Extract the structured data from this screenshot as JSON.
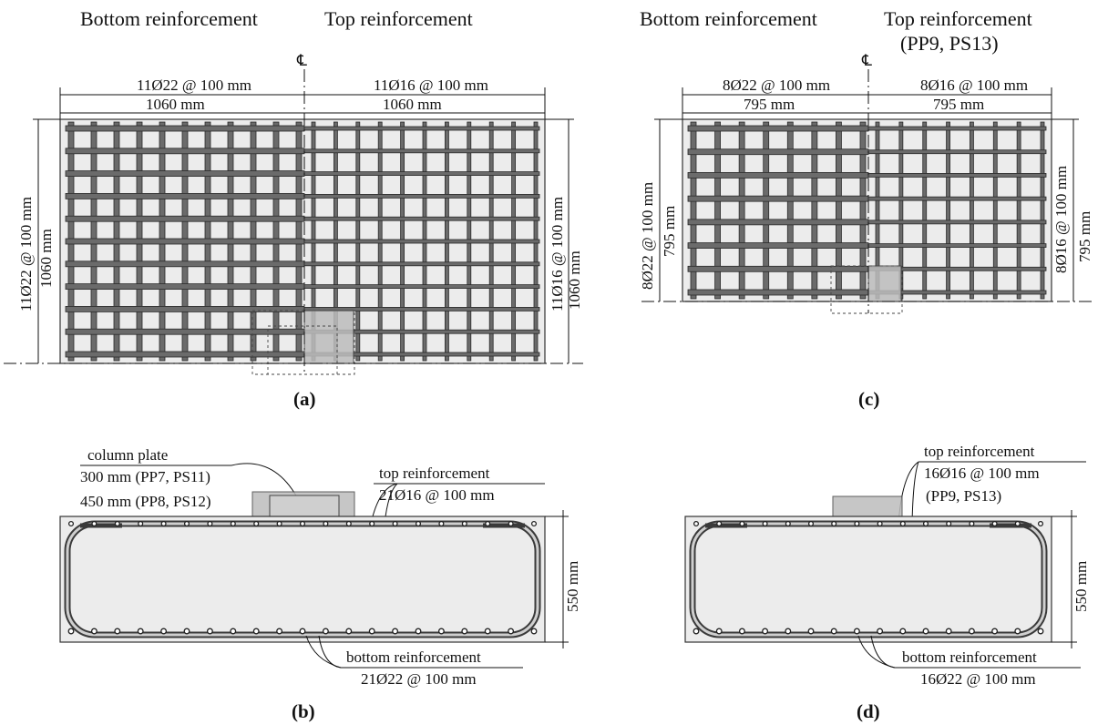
{
  "panel_a": {
    "header_left": "Bottom reinforcement",
    "header_right": "Top reinforcement",
    "centerline": "℄",
    "dim_top_left_bars": "11Ø22 @ 100 mm",
    "dim_top_left_len": "1060 mm",
    "dim_top_right_bars": "11Ø16 @ 100 mm",
    "dim_top_right_len": "1060 mm",
    "dim_left_bars": "11Ø22 @ 100 mm",
    "dim_left_len": "1060 mm",
    "dim_right_bars": "11Ø16 @ 100 mm",
    "dim_right_len": "1060 mm",
    "caption": "(a)"
  },
  "panel_c": {
    "header_left": "Bottom reinforcement",
    "header_right": "Top reinforcement",
    "header_right_sub": "(PP9, PS13)",
    "centerline": "℄",
    "dim_top_left_bars": "8Ø22 @ 100 mm",
    "dim_top_left_len": "795 mm",
    "dim_top_right_bars": "8Ø16 @ 100 mm",
    "dim_top_right_len": "795 mm",
    "dim_left_bars": "8Ø22 @ 100 mm",
    "dim_left_len": "795 mm",
    "dim_right_bars": "8Ø16 @ 100 mm",
    "dim_right_len": "795 mm",
    "caption": "(c)"
  },
  "panel_b": {
    "plate_title": "column plate",
    "plate_line1": "300 mm (PP7, PS11)",
    "plate_line2": "450 mm (PP8, PS12)",
    "top_title": "top reinforcement",
    "top_bars": "21Ø16 @ 100 mm",
    "bottom_title": "bottom reinforcement",
    "bottom_bars": "21Ø22 @ 100 mm",
    "height": "550 mm",
    "caption": "(b)"
  },
  "panel_d": {
    "top_title": "top reinforcement",
    "top_bars": "16Ø16 @ 100 mm",
    "top_tests": "(PP9, PS13)",
    "bottom_title": "bottom reinforcement",
    "bottom_bars": "16Ø22 @ 100 mm",
    "height": "550 mm",
    "caption": "(d)"
  }
}
